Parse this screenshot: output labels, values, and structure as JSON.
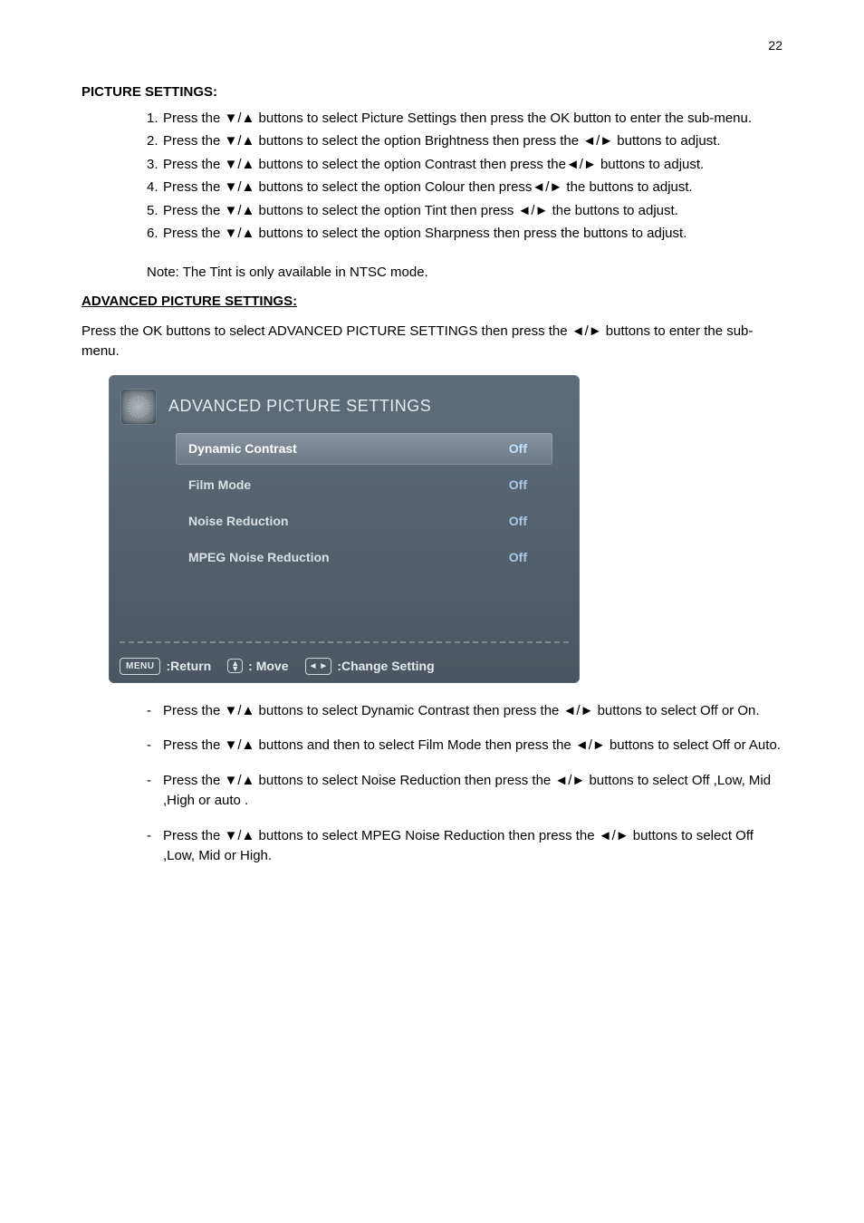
{
  "page_number": "22",
  "picture_settings": {
    "title": "PICTURE SETTINGS:",
    "steps": [
      "Press the ▼/▲ buttons to select Picture Settings then press the OK button to enter the sub-menu.",
      "Press the ▼/▲ buttons to select the option Brightness then press the ◄/► buttons to adjust.",
      "Press the ▼/▲ buttons to select the option Contrast then press the◄/► buttons to adjust.",
      "Press the ▼/▲ buttons to select the option Colour then press◄/► the buttons to adjust.",
      "Press the ▼/▲ buttons to select the option Tint then press ◄/► the buttons to adjust.",
      "Press the ▼/▲ buttons to select the option Sharpness then press the buttons to adjust."
    ],
    "note": "Note: The Tint is only available in NTSC mode."
  },
  "advanced_settings": {
    "title": "ADVANCED PICTURE SETTINGS:",
    "intro": "Press the OK buttons to select ADVANCED PICTURE SETTINGS then press the ◄/► buttons to enter the sub-menu.",
    "osd": {
      "title": "ADVANCED PICTURE SETTINGS",
      "rows": [
        {
          "label": "Dynamic Contrast",
          "value": "Off",
          "selected": true
        },
        {
          "label": "Film Mode",
          "value": "Off",
          "selected": false
        },
        {
          "label": "Noise Reduction",
          "value": "Off",
          "selected": false
        },
        {
          "label": "MPEG Noise Reduction",
          "value": "Off",
          "selected": false
        }
      ],
      "footer": {
        "menu_btn": "MENU",
        "return_label": ":Return",
        "move_label": ": Move",
        "change_label": ":Change Setting"
      },
      "colors": {
        "panel_bg_top": "#5f6d7a",
        "panel_bg_bottom": "#4a5661",
        "selected_bg_top": "#8893a0",
        "selected_bg_bottom": "#6d7885",
        "value_color": "#a7c7e8",
        "text_color": "#dfe5ea",
        "divider_color": "#97a0a8"
      }
    },
    "after_steps": [
      "Press the ▼/▲ buttons to select Dynamic Contrast then press the ◄/► buttons to select Off or On.",
      "Press the ▼/▲ buttons and then to select Film Mode then press the ◄/► buttons to select Off or Auto.",
      "Press the ▼/▲ buttons to select Noise Reduction then press the ◄/► buttons to select Off ,Low, Mid ,High or auto .",
      "Press the ▼/▲ buttons to select MPEG Noise Reduction then press the ◄/► buttons to select Off ,Low, Mid or High."
    ]
  }
}
